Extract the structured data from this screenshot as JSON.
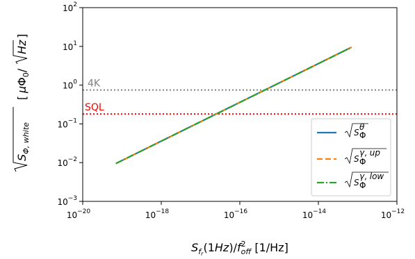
{
  "chart_data": {
    "type": "line",
    "xscale": "log",
    "yscale": "log",
    "xlim": [
      1e-20,
      1e-12
    ],
    "ylim": [
      0.001,
      100
    ],
    "xlabel": "S_fr(1Hz)/f_off^2 [1/Hz]",
    "ylabel": "sqrt(S_Φ,white) [μΦ0/√Hz]",
    "x_ticks": [
      {
        "value": 1e-20,
        "base": "10",
        "exp": "−20"
      },
      {
        "value": 1e-18,
        "base": "10",
        "exp": "−18"
      },
      {
        "value": 1e-16,
        "base": "10",
        "exp": "−16"
      },
      {
        "value": 1e-14,
        "base": "10",
        "exp": "−14"
      },
      {
        "value": 1e-12,
        "base": "10",
        "exp": "−12"
      }
    ],
    "y_ticks": [
      {
        "value": 0.001,
        "base": "10",
        "exp": "−3"
      },
      {
        "value": 0.01,
        "base": "10",
        "exp": "−2"
      },
      {
        "value": 0.1,
        "base": "10",
        "exp": "−1"
      },
      {
        "value": 1,
        "base": "10",
        "exp": "0"
      },
      {
        "value": 10,
        "base": "10",
        "exp": "1"
      },
      {
        "value": 100,
        "base": "10",
        "exp": "2"
      }
    ],
    "series": [
      {
        "name": "√S_Φ^θ",
        "color": "#1f77b4",
        "dash": "solid",
        "x": [
          7e-20,
          7e-14
        ],
        "y": [
          0.0095,
          9.5
        ]
      },
      {
        "name": "√S_Φ^γ,up",
        "color": "#ff7f0e",
        "dash": "dashed",
        "x": [
          7e-20,
          7e-14
        ],
        "y": [
          0.0095,
          9.5
        ]
      },
      {
        "name": "√S_Φ^γ,low",
        "color": "#2ca02c",
        "dash": "dashdot",
        "x": [
          7e-20,
          7e-14
        ],
        "y": [
          0.0095,
          9.5
        ]
      }
    ],
    "reference_lines": [
      {
        "label": "4K",
        "y": 0.75,
        "color": "#808080",
        "style": "dotted"
      },
      {
        "label": "SQL",
        "y": 0.18,
        "color": "#ff0000",
        "style": "dotted"
      }
    ],
    "legend_location": "lower right",
    "grid": false
  }
}
